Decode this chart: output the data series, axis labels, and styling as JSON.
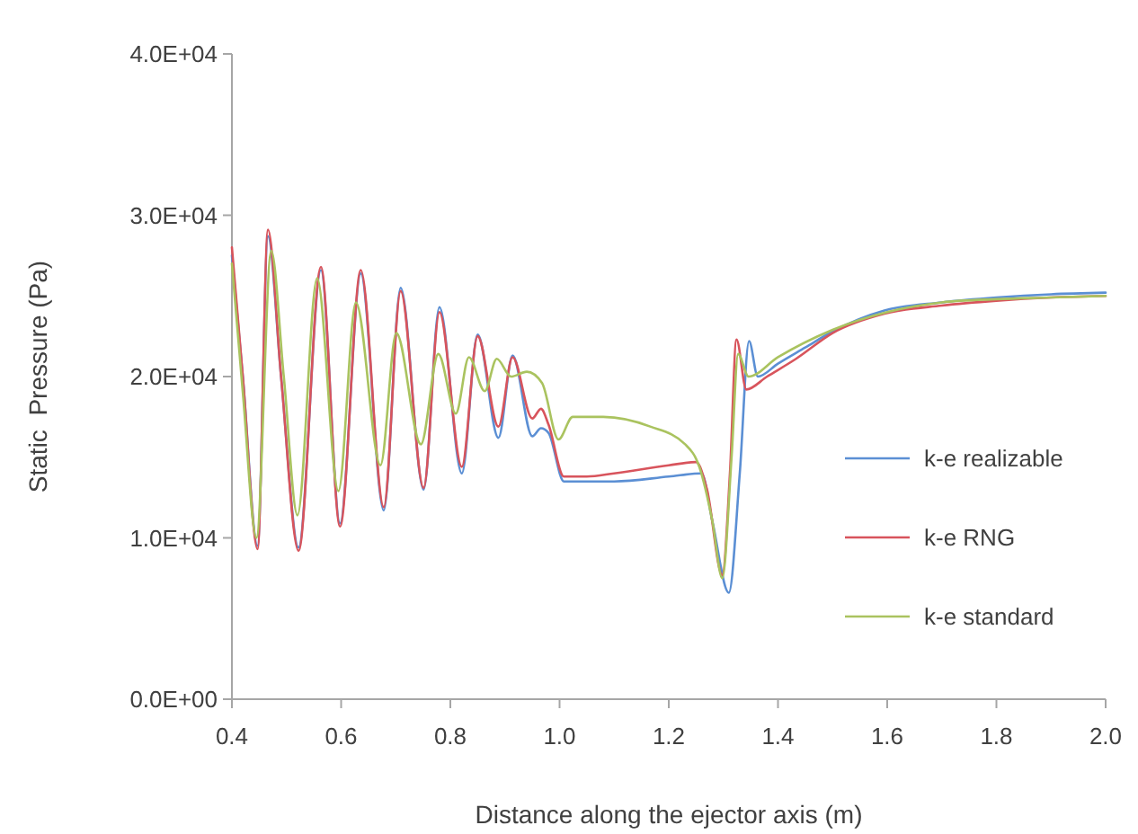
{
  "chart_data": {
    "type": "line",
    "xlabel": "Distance along the ejector axis (m)",
    "ylabel": "Static  Pressure (Pa)",
    "xlim": [
      0.4,
      2.0
    ],
    "xticks": [
      {
        "value": 0.4,
        "label": "0.4"
      },
      {
        "value": 0.6,
        "label": "0.6"
      },
      {
        "value": 0.8,
        "label": "0.8"
      },
      {
        "value": 1.0,
        "label": "1.0"
      },
      {
        "value": 1.2,
        "label": "1.2"
      },
      {
        "value": 1.4,
        "label": "1.4"
      },
      {
        "value": 1.6,
        "label": "1.6"
      },
      {
        "value": 1.8,
        "label": "1.8"
      },
      {
        "value": 2.0,
        "label": "2.0"
      }
    ],
    "ylim": [
      0,
      40000
    ],
    "yticks": [
      {
        "value": 0,
        "label": "0.0E+00"
      },
      {
        "value": 10000,
        "label": "1.0E+04"
      },
      {
        "value": 20000,
        "label": "2.0E+04"
      },
      {
        "value": 30000,
        "label": "3.0E+04"
      },
      {
        "value": 40000,
        "label": "4.0E+04"
      }
    ],
    "grid": false,
    "legend": "right",
    "marker": "none",
    "line_style": "solid",
    "series": [
      {
        "name": "k-e realizable",
        "color": "#5b8fd4",
        "x": [
          0.4,
          0.42,
          0.447,
          0.466,
          0.49,
          0.522,
          0.563,
          0.598,
          0.636,
          0.678,
          0.709,
          0.751,
          0.78,
          0.821,
          0.85,
          0.888,
          0.914,
          0.95,
          0.966,
          0.98,
          1.008,
          1.05,
          1.1,
          1.2,
          1.26,
          1.28,
          1.31,
          1.33,
          1.347,
          1.363,
          1.4,
          1.45,
          1.5,
          1.595,
          1.7,
          1.8,
          1.9,
          2.0
        ],
        "values": [
          27500,
          20000,
          9500,
          28700,
          20000,
          9400,
          26600,
          10900,
          26400,
          11700,
          25500,
          13000,
          24300,
          14000,
          22600,
          16200,
          21300,
          16300,
          16800,
          16500,
          13500,
          13500,
          13500,
          13800,
          14000,
          11000,
          6600,
          14000,
          22200,
          20000,
          20800,
          21800,
          22800,
          24100,
          24600,
          24900,
          25100,
          25200
        ]
      },
      {
        "name": "k-e RNG",
        "color": "#d8545c",
        "x": [
          0.4,
          0.42,
          0.447,
          0.466,
          0.49,
          0.522,
          0.563,
          0.598,
          0.636,
          0.678,
          0.709,
          0.751,
          0.78,
          0.821,
          0.85,
          0.888,
          0.914,
          0.95,
          0.966,
          0.98,
          1.008,
          1.05,
          1.1,
          1.2,
          1.25,
          1.27,
          1.298,
          1.312,
          1.324,
          1.342,
          1.38,
          1.433,
          1.5,
          1.595,
          1.7,
          1.8,
          1.9,
          2.0
        ],
        "values": [
          28000,
          20000,
          9300,
          29100,
          20000,
          9200,
          26800,
          10700,
          26600,
          11900,
          25300,
          13100,
          24000,
          14400,
          22500,
          16900,
          21200,
          17400,
          18000,
          17000,
          13800,
          13800,
          14000,
          14500,
          14700,
          13000,
          7700,
          14000,
          22300,
          19200,
          20000,
          21100,
          22700,
          23900,
          24400,
          24700,
          24900,
          25000
        ]
      },
      {
        "name": "k-e standard",
        "color": "#aac35f",
        "x": [
          0.4,
          0.42,
          0.445,
          0.472,
          0.495,
          0.52,
          0.556,
          0.595,
          0.627,
          0.672,
          0.701,
          0.746,
          0.778,
          0.81,
          0.834,
          0.863,
          0.885,
          0.911,
          0.94,
          0.968,
          0.998,
          1.024,
          1.08,
          1.166,
          1.23,
          1.256,
          1.28,
          1.298,
          1.315,
          1.327,
          1.346,
          1.4,
          1.5,
          1.6,
          1.7,
          1.8,
          1.9,
          2.0
        ],
        "values": [
          27000,
          19000,
          10000,
          27800,
          20000,
          11400,
          26100,
          12900,
          24600,
          14500,
          22700,
          15800,
          21400,
          17700,
          21200,
          19100,
          21100,
          20000,
          20300,
          19600,
          16100,
          17500,
          17500,
          16900,
          15800,
          14400,
          11000,
          7500,
          15000,
          21400,
          20000,
          21200,
          22900,
          24000,
          24600,
          24800,
          24900,
          25000
        ]
      }
    ]
  }
}
